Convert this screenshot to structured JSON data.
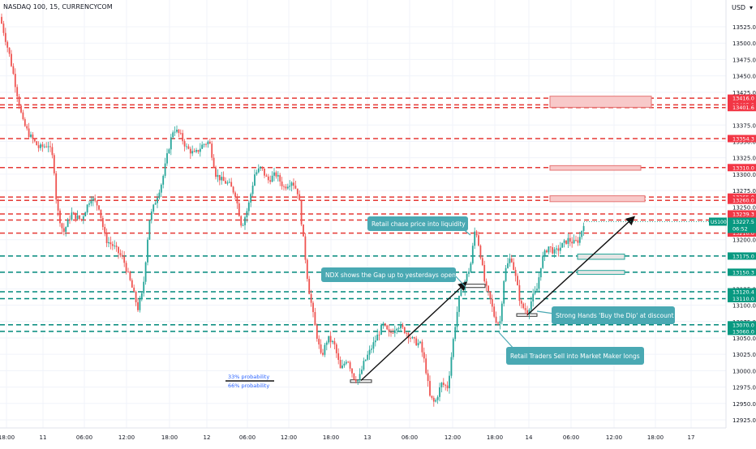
{
  "header": {
    "symbol_title": "NASDAQ 100, 15, CURRENCYCOM"
  },
  "currency_label": "USD",
  "symbol_badge": {
    "name": "US100",
    "price": "13227.5",
    "countdown": "06:52"
  },
  "colors": {
    "up": "#26a69a",
    "down": "#ef5350",
    "resistance": "#e53935",
    "support": "#00897b",
    "zone_fill": "#f8c9c9",
    "zone_stroke": "#e57373",
    "sup_zone_fill": "#e5e5e5",
    "sup_zone_stroke": "#26a69a",
    "callout_fill": "#4aa9b3",
    "callout_text": "#ffffff",
    "badge_red": "#f23645",
    "badge_green": "#089981",
    "badge_blue": "#2962ff",
    "arrow": "#111111",
    "grid": "#f0f3fa",
    "axis_text": "#131722"
  },
  "chart_data": {
    "type": "candlestick",
    "title": "NASDAQ 100, 15, CURRENCYCOM",
    "y_axis": {
      "range": [
        12915,
        13555
      ],
      "ticks": [
        "13525.0",
        "13500.0",
        "13475.0",
        "13450.0",
        "13425.0",
        "13375.0",
        "13350.0",
        "13325.0",
        "13300.0",
        "13275.0",
        "13250.0",
        "13200.0",
        "13175.0",
        "13150.0",
        "13125.0",
        "13100.0",
        "13075.0",
        "13050.0",
        "13025.0",
        "13000.0",
        "12975.0",
        "12950.0",
        "12925.0"
      ]
    },
    "x_axis": {
      "ticks": [
        "18:00",
        "11",
        "06:00",
        "12:00",
        "18:00",
        "12",
        "06:00",
        "12:00",
        "18:00",
        "13",
        "06:00",
        "12:00",
        "18:00",
        "14",
        "06:00",
        "12:00",
        "18:00",
        "17"
      ]
    },
    "price_levels": [
      {
        "price": 13416.0,
        "label": "13416.0",
        "kind": "resistance"
      },
      {
        "price": 13405.8,
        "label": "13405.8",
        "kind": "resistance"
      },
      {
        "price": 13401.6,
        "label": "13401.6",
        "kind": "resistance"
      },
      {
        "price": 13354.3,
        "label": "13354.3",
        "kind": "resistance"
      },
      {
        "price": 13310.0,
        "label": "13310.0",
        "kind": "resistance"
      },
      {
        "price": 13265.0,
        "label": "13265.0",
        "kind": "resistance"
      },
      {
        "price": 13260.0,
        "label": "13260.0",
        "kind": "resistance"
      },
      {
        "price": 13239.3,
        "label": "13239.3",
        "kind": "resistance"
      },
      {
        "price": 13230.0,
        "label": "13230.0",
        "kind": "resistance"
      },
      {
        "price": 13210.0,
        "label": "13210.0",
        "kind": "resistance"
      },
      {
        "price": 13175.0,
        "label": "13175.0",
        "kind": "support"
      },
      {
        "price": 13150.3,
        "label": "13150.3",
        "kind": "support"
      },
      {
        "price": 13120.4,
        "label": "13120.4",
        "kind": "support"
      },
      {
        "price": 13110.0,
        "label": "13110.0",
        "kind": "support"
      },
      {
        "price": 13070.0,
        "label": "13070.0",
        "kind": "support"
      },
      {
        "price": 13060.0,
        "label": "13060.0",
        "kind": "support"
      }
    ],
    "last_price": 13227.5,
    "price_path": [
      [
        0,
        13540
      ],
      [
        4,
        13520
      ],
      [
        12,
        13480
      ],
      [
        20,
        13430
      ],
      [
        28,
        13380
      ],
      [
        36,
        13360
      ],
      [
        48,
        13340
      ],
      [
        60,
        13345
      ],
      [
        66,
        13320
      ],
      [
        70,
        13250
      ],
      [
        78,
        13210
      ],
      [
        88,
        13240
      ],
      [
        100,
        13230
      ],
      [
        112,
        13265
      ],
      [
        122,
        13250
      ],
      [
        130,
        13200
      ],
      [
        140,
        13190
      ],
      [
        152,
        13170
      ],
      [
        162,
        13130
      ],
      [
        170,
        13095
      ],
      [
        176,
        13120
      ],
      [
        184,
        13230
      ],
      [
        192,
        13260
      ],
      [
        200,
        13290
      ],
      [
        208,
        13340
      ],
      [
        214,
        13370
      ],
      [
        222,
        13360
      ],
      [
        230,
        13340
      ],
      [
        240,
        13330
      ],
      [
        250,
        13345
      ],
      [
        258,
        13350
      ],
      [
        266,
        13300
      ],
      [
        274,
        13290
      ],
      [
        282,
        13285
      ],
      [
        290,
        13270
      ],
      [
        298,
        13220
      ],
      [
        306,
        13250
      ],
      [
        314,
        13300
      ],
      [
        322,
        13310
      ],
      [
        330,
        13290
      ],
      [
        340,
        13300
      ],
      [
        350,
        13280
      ],
      [
        360,
        13290
      ],
      [
        368,
        13270
      ],
      [
        374,
        13200
      ],
      [
        380,
        13130
      ],
      [
        388,
        13070
      ],
      [
        396,
        13020
      ],
      [
        404,
        13050
      ],
      [
        412,
        13040
      ],
      [
        420,
        13000
      ],
      [
        428,
        13020
      ],
      [
        436,
        12990
      ],
      [
        442,
        12985
      ],
      [
        448,
        13010
      ],
      [
        456,
        13030
      ],
      [
        464,
        13050
      ],
      [
        472,
        13070
      ],
      [
        480,
        13055
      ],
      [
        490,
        13070
      ],
      [
        500,
        13060
      ],
      [
        510,
        13045
      ],
      [
        518,
        13040
      ],
      [
        524,
        13010
      ],
      [
        530,
        12960
      ],
      [
        536,
        12950
      ],
      [
        544,
        12980
      ],
      [
        552,
        12975
      ],
      [
        560,
        13060
      ],
      [
        566,
        13110
      ],
      [
        574,
        13140
      ],
      [
        580,
        13160
      ],
      [
        586,
        13220
      ],
      [
        592,
        13180
      ],
      [
        598,
        13130
      ],
      [
        604,
        13110
      ],
      [
        610,
        13080
      ],
      [
        616,
        13070
      ],
      [
        622,
        13150
      ],
      [
        630,
        13175
      ],
      [
        636,
        13140
      ],
      [
        642,
        13100
      ],
      [
        650,
        13090
      ],
      [
        656,
        13110
      ],
      [
        662,
        13125
      ],
      [
        668,
        13170
      ],
      [
        676,
        13190
      ],
      [
        684,
        13180
      ],
      [
        692,
        13190
      ],
      [
        700,
        13200
      ],
      [
        708,
        13195
      ],
      [
        714,
        13200
      ],
      [
        720,
        13227.5
      ]
    ],
    "annotations": [
      "Retail chase price into liquidity",
      "NDX shows the Gap up to yesterdays open",
      "Strong Hands 'Buy the Dip' at discount",
      "Retail Traders Sell into Market Maker longs"
    ],
    "probability_labels": [
      "33% probability",
      "66% probability"
    ]
  }
}
